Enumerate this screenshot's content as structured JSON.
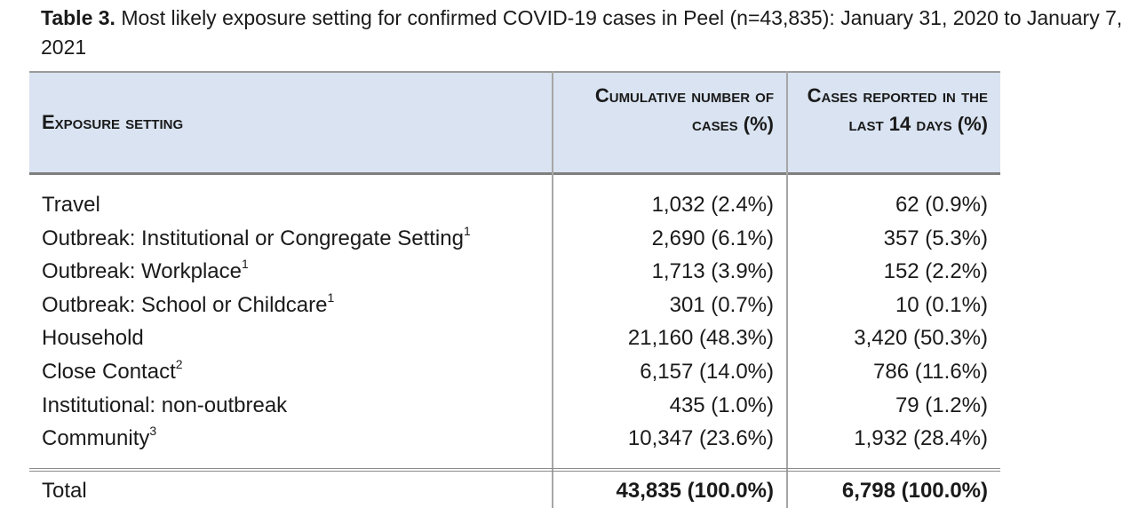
{
  "caption": {
    "label": "Table 3.",
    "text": " Most likely exposure setting for confirmed COVID-19 cases in Peel (n=43,835): January 31, 2020 to January 7, 2021"
  },
  "headers": {
    "setting": "Exposure setting",
    "cumulative": "Cumulative number of cases (%)",
    "recent": "Cases reported in the last 14 days (%)"
  },
  "rows": [
    {
      "setting": "Travel",
      "sup": "",
      "cumulative": "1,032 (2.4%)",
      "recent": "62 (0.9%)"
    },
    {
      "setting": "Outbreak: Institutional or Congregate Setting",
      "sup": "1",
      "cumulative": "2,690 (6.1%)",
      "recent": "357 (5.3%)"
    },
    {
      "setting": "Outbreak: Workplace",
      "sup": "1",
      "cumulative": "1,713 (3.9%)",
      "recent": "152 (2.2%)"
    },
    {
      "setting": "Outbreak: School or Childcare",
      "sup": "1",
      "cumulative": "301 (0.7%)",
      "recent": "10 (0.1%)"
    },
    {
      "setting": "Household",
      "sup": "",
      "cumulative": "21,160 (48.3%)",
      "recent": "3,420 (50.3%)"
    },
    {
      "setting": "Close Contact",
      "sup": "2",
      "cumulative": "6,157 (14.0%)",
      "recent": "786 (11.6%)"
    },
    {
      "setting": "Institutional: non-outbreak",
      "sup": "",
      "cumulative": "435 (1.0%)",
      "recent": "79 (1.2%)"
    },
    {
      "setting": "Community",
      "sup": "3",
      "cumulative": "10,347 (23.6%)",
      "recent": "1,932 (28.4%)"
    }
  ],
  "total": {
    "setting": "Total",
    "cumulative": "43,835 (100.0%)",
    "recent": "6,798 (100.0%)"
  },
  "colors": {
    "header_bg": "#d9e3f1",
    "text": "#1a1a1a"
  }
}
